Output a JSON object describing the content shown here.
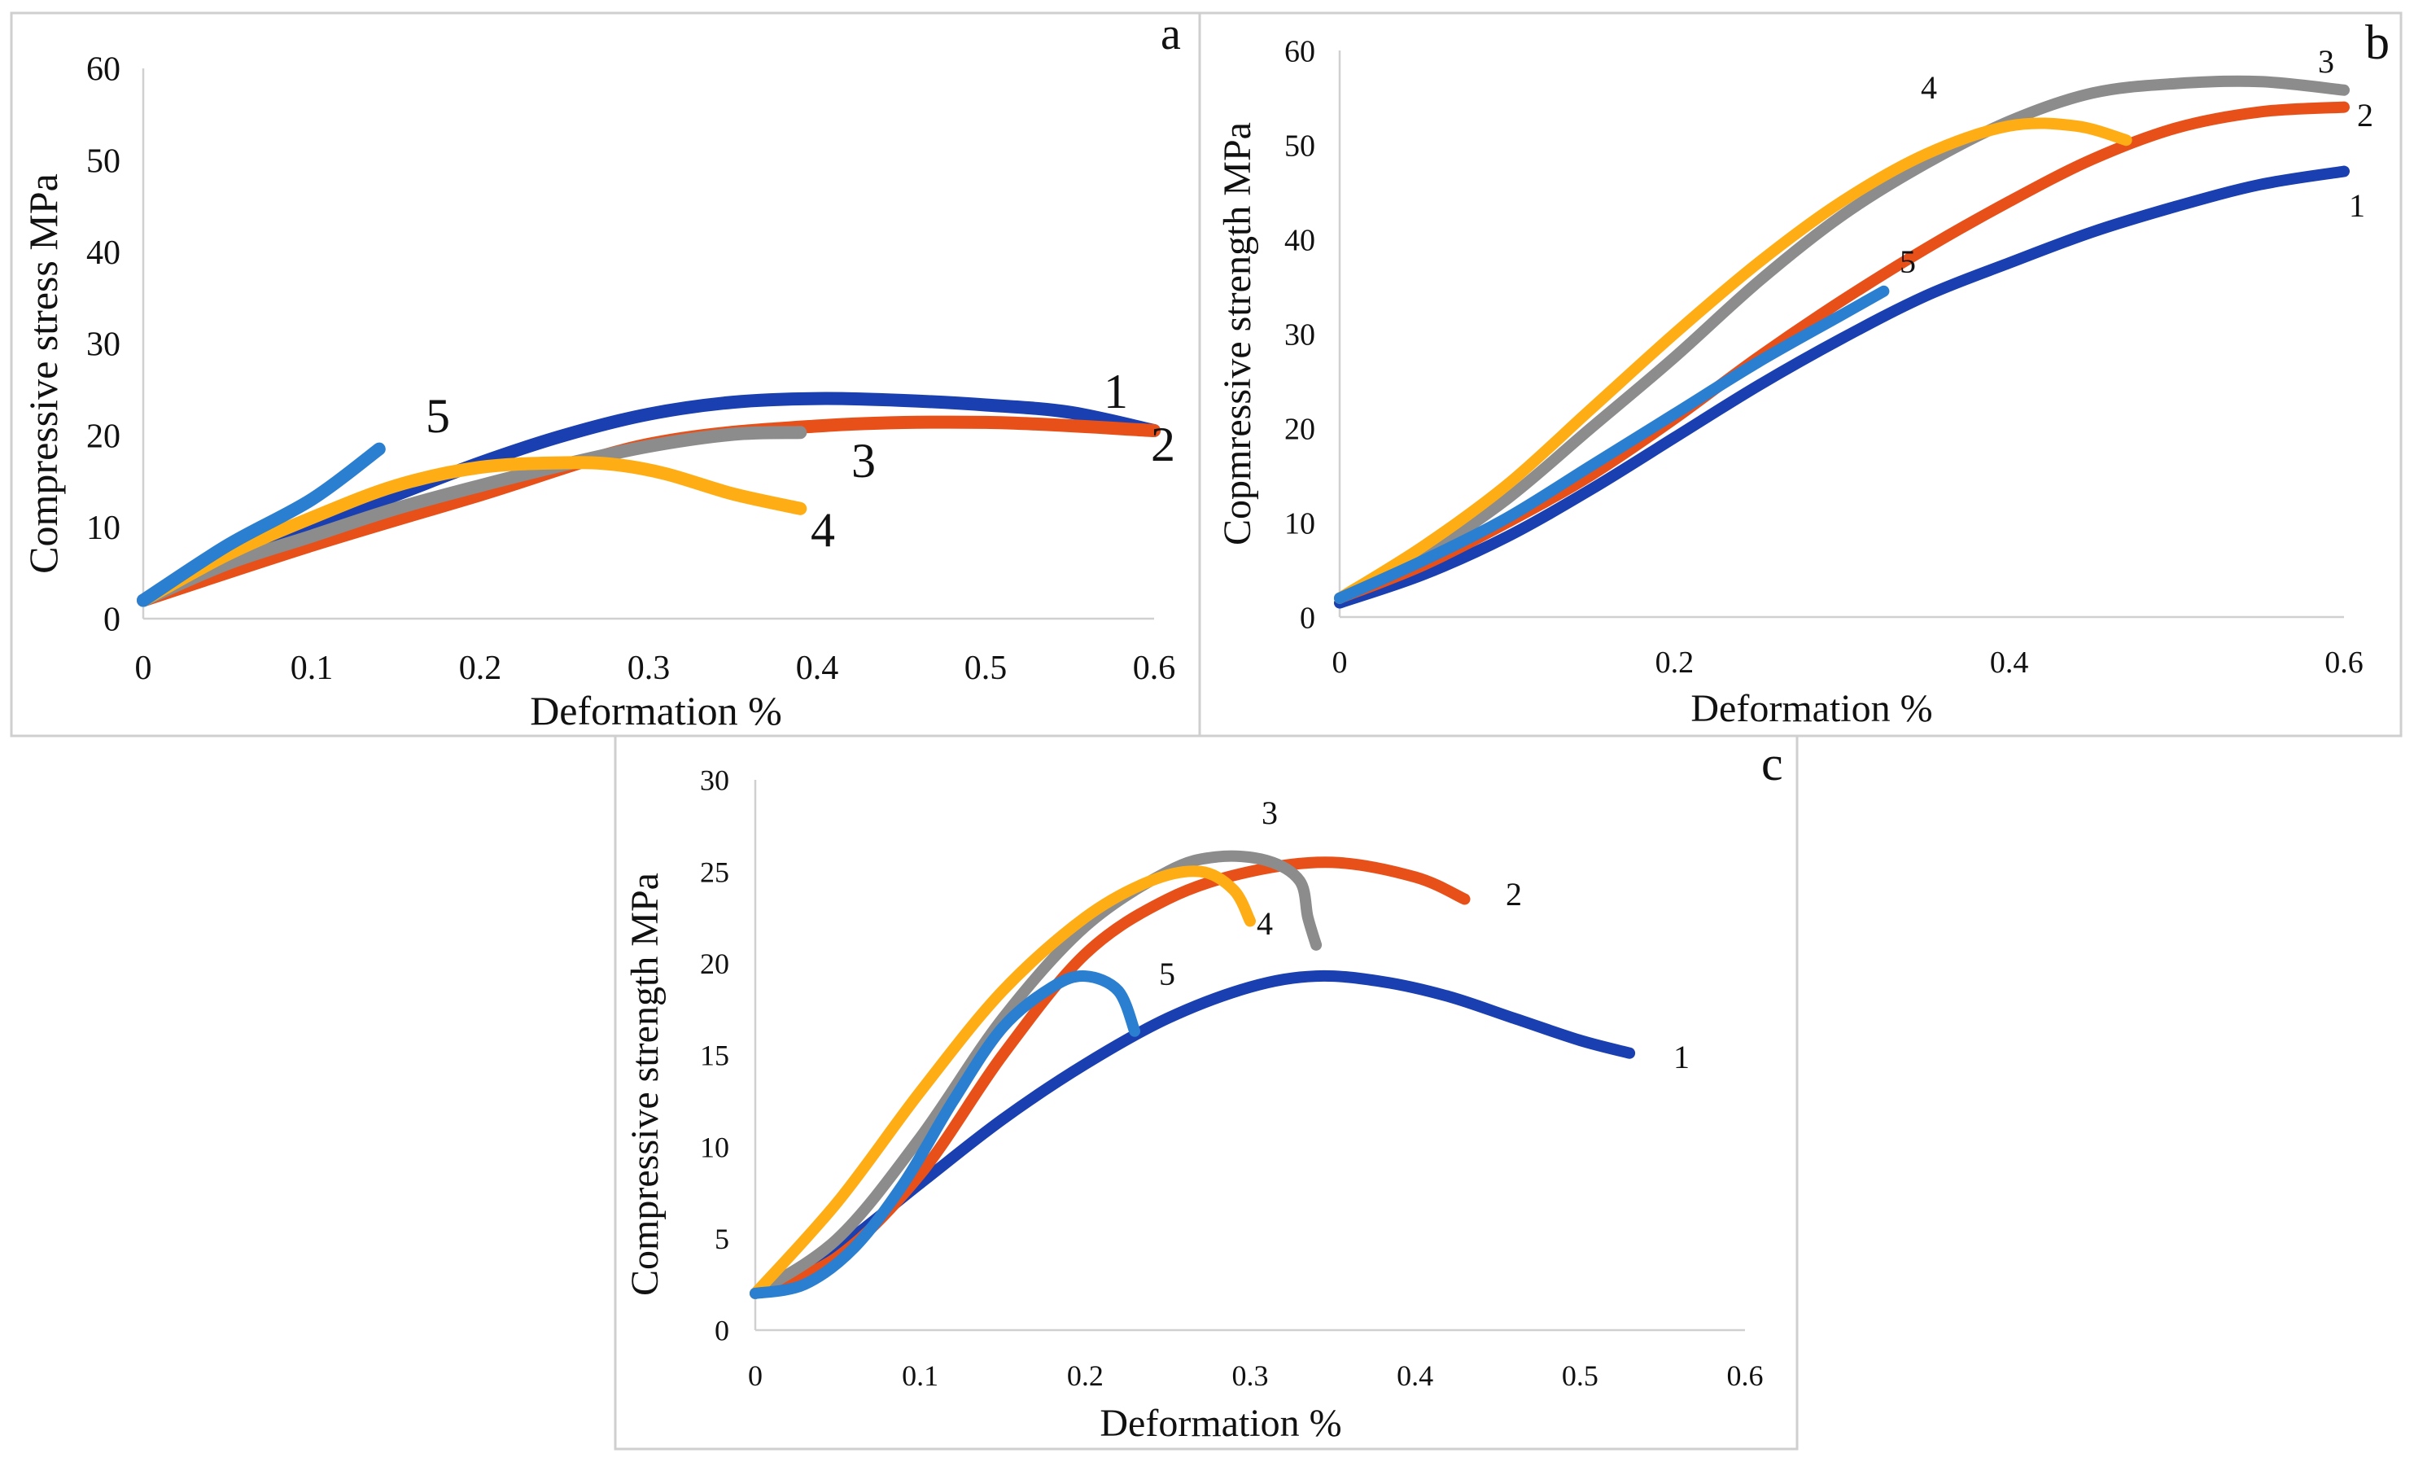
{
  "colors": {
    "1": "#1a3fb0",
    "2": "#e8501a",
    "3": "#8c8c8c",
    "4": "#ffad14",
    "5": "#2a7fd0"
  },
  "chart_data": [
    {
      "type": "line",
      "panel": "a",
      "title": "",
      "xlabel": "Deformation %",
      "ylabel": "Compressive stress MPa",
      "xlim": [
        0,
        0.6
      ],
      "ylim": [
        0,
        60
      ],
      "x_ticks": [
        "0",
        "0.1",
        "0.2",
        "0.3",
        "0.4",
        "0.5",
        "0.6"
      ],
      "y_ticks": [
        "0",
        "10",
        "20",
        "30",
        "40",
        "50",
        "60"
      ],
      "series": [
        {
          "name": "1",
          "x": [
            0,
            0.05,
            0.1,
            0.15,
            0.2,
            0.25,
            0.3,
            0.35,
            0.4,
            0.45,
            0.5,
            0.55,
            0.6
          ],
          "y": [
            2,
            6,
            10,
            13.5,
            17,
            20,
            22.3,
            23.6,
            24,
            23.8,
            23.3,
            22.5,
            20.5
          ]
        },
        {
          "name": "2",
          "x": [
            0,
            0.1,
            0.2,
            0.3,
            0.4,
            0.5,
            0.6
          ],
          "y": [
            2,
            8,
            13.5,
            19,
            21,
            21.4,
            20.5
          ]
        },
        {
          "name": "3",
          "x": [
            0,
            0.05,
            0.1,
            0.15,
            0.2,
            0.25,
            0.3,
            0.35,
            0.39
          ],
          "y": [
            2,
            6,
            9,
            12,
            14.5,
            16.8,
            18.8,
            20.1,
            20.3
          ]
        },
        {
          "name": "4",
          "x": [
            0,
            0.05,
            0.1,
            0.15,
            0.2,
            0.25,
            0.28,
            0.31,
            0.35,
            0.39
          ],
          "y": [
            2,
            7,
            11,
            14.5,
            16.5,
            17,
            16.8,
            15.8,
            13.6,
            12
          ]
        },
        {
          "name": "5",
          "x": [
            0,
            0.05,
            0.1,
            0.14
          ],
          "y": [
            2,
            8,
            13,
            18.5
          ]
        }
      ],
      "series_labels": [
        "1",
        "2",
        "3",
        "4",
        "5"
      ],
      "panel_letter": "a"
    },
    {
      "type": "line",
      "panel": "b",
      "title": "",
      "xlabel": "Deformation %",
      "ylabel": "Copmressive strength MPa",
      "xlim": [
        0,
        0.6
      ],
      "ylim": [
        0,
        60
      ],
      "x_ticks": [
        "0",
        "0.2",
        "0.4",
        "0.6"
      ],
      "x_tick_values": [
        0,
        0.2,
        0.4,
        0.6
      ],
      "y_ticks": [
        "0",
        "10",
        "20",
        "30",
        "40",
        "50",
        "60"
      ],
      "series": [
        {
          "name": "1",
          "x": [
            0,
            0.05,
            0.1,
            0.15,
            0.2,
            0.25,
            0.3,
            0.35,
            0.4,
            0.45,
            0.5,
            0.55,
            0.6
          ],
          "y": [
            1.5,
            4.5,
            8.5,
            13.5,
            19,
            24.5,
            29.5,
            34,
            37.5,
            40.8,
            43.5,
            45.8,
            47.2
          ]
        },
        {
          "name": "2",
          "x": [
            0,
            0.05,
            0.1,
            0.15,
            0.2,
            0.25,
            0.3,
            0.35,
            0.4,
            0.45,
            0.5,
            0.55,
            0.6
          ],
          "y": [
            2,
            5.5,
            10,
            15,
            21,
            27.5,
            33.5,
            39,
            44,
            48.5,
            51.8,
            53.5,
            54
          ]
        },
        {
          "name": "3",
          "x": [
            0,
            0.05,
            0.1,
            0.15,
            0.2,
            0.25,
            0.3,
            0.35,
            0.4,
            0.45,
            0.5,
            0.55,
            0.6
          ],
          "y": [
            2,
            6.5,
            12.5,
            20,
            27.5,
            35.5,
            42.5,
            48,
            52.5,
            55.5,
            56.5,
            56.7,
            55.8
          ]
        },
        {
          "name": "4",
          "x": [
            0,
            0.05,
            0.1,
            0.15,
            0.2,
            0.25,
            0.3,
            0.35,
            0.4,
            0.44,
            0.47
          ],
          "y": [
            2,
            7.5,
            14,
            22,
            30,
            37.5,
            44,
            49,
            52,
            52,
            50.5
          ]
        },
        {
          "name": "5",
          "x": [
            0,
            0.05,
            0.1,
            0.15,
            0.2,
            0.25,
            0.3,
            0.325
          ],
          "y": [
            2,
            6,
            10.5,
            16,
            21.5,
            27,
            32,
            34.5
          ]
        }
      ],
      "series_labels": [
        "1",
        "2",
        "3",
        "4",
        "5"
      ],
      "panel_letter": "b"
    },
    {
      "type": "line",
      "panel": "c",
      "title": "",
      "xlabel": "Deformation %",
      "ylabel": "Compressive strength MPa",
      "xlim": [
        0,
        0.6
      ],
      "ylim": [
        0,
        30
      ],
      "x_ticks": [
        "0",
        "0.1",
        "0.2",
        "0.3",
        "0.4",
        "0.5",
        "0.6"
      ],
      "y_ticks": [
        "0",
        "5",
        "10",
        "15",
        "20",
        "25",
        "30"
      ],
      "series": [
        {
          "name": "1",
          "x": [
            0,
            0.05,
            0.1,
            0.15,
            0.2,
            0.25,
            0.3,
            0.34,
            0.38,
            0.42,
            0.46,
            0.5,
            0.53
          ],
          "y": [
            2,
            4.5,
            8,
            11.5,
            14.5,
            17,
            18.7,
            19.3,
            19,
            18.2,
            17,
            15.8,
            15.1
          ]
        },
        {
          "name": "2",
          "x": [
            0,
            0.05,
            0.1,
            0.15,
            0.2,
            0.25,
            0.3,
            0.35,
            0.4,
            0.43
          ],
          "y": [
            2,
            4,
            8.5,
            15,
            20.5,
            23.5,
            25,
            25.5,
            24.7,
            23.5
          ]
        },
        {
          "name": "3",
          "x": [
            0,
            0.05,
            0.1,
            0.15,
            0.2,
            0.25,
            0.28,
            0.31,
            0.33,
            0.335,
            0.34
          ],
          "y": [
            2,
            5,
            10.5,
            17,
            22,
            25,
            25.8,
            25.6,
            24.5,
            22.5,
            21
          ]
        },
        {
          "name": "4",
          "x": [
            0,
            0.05,
            0.1,
            0.15,
            0.2,
            0.24,
            0.27,
            0.29,
            0.3
          ],
          "y": [
            2,
            7,
            13,
            18.5,
            22.5,
            24.5,
            25,
            24,
            22.3
          ]
        },
        {
          "name": "5",
          "x": [
            0,
            0.03,
            0.06,
            0.09,
            0.12,
            0.15,
            0.18,
            0.2,
            0.22,
            0.23
          ],
          "y": [
            2,
            2.5,
            4.5,
            8,
            12.5,
            16.5,
            18.7,
            19.3,
            18.5,
            16.3
          ]
        }
      ],
      "series_labels": [
        "1",
        "2",
        "3",
        "4",
        "5"
      ],
      "panel_letter": "c"
    }
  ]
}
